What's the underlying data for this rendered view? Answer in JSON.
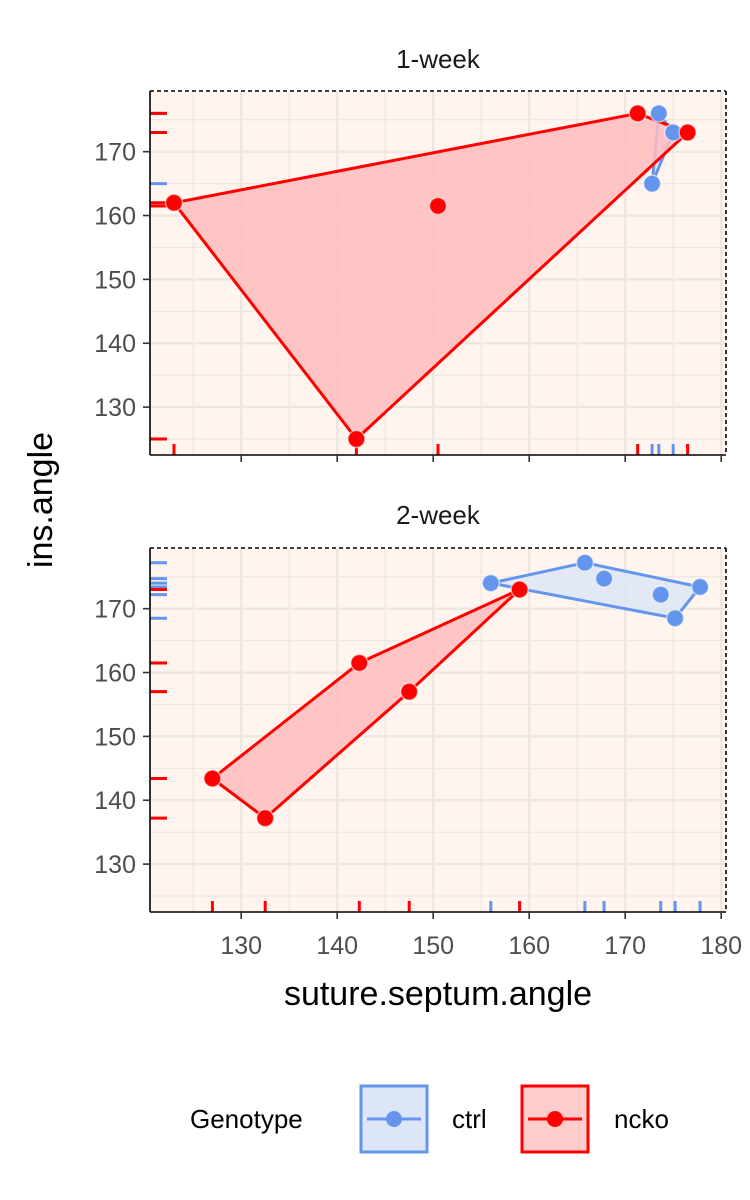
{
  "chart_data": {
    "type": "scatter",
    "xlabel": "suture.septum.angle",
    "ylabel": "ins.angle",
    "xlim": [
      120.5,
      180.5
    ],
    "ylim": [
      122.5,
      179.5
    ],
    "x_ticks": [
      130,
      140,
      150,
      160,
      170,
      180
    ],
    "y_ticks": [
      130,
      140,
      150,
      160,
      170
    ],
    "grid": true,
    "panel_background": "#fff4ee",
    "legend": {
      "title": "Genotype",
      "placement": "bottom",
      "entries": [
        "ctrl",
        "ncko"
      ]
    },
    "series_colors": {
      "ctrl": "#6495ed",
      "ncko": "#ff0000"
    },
    "hull_fill": {
      "ctrl": "#dde6f6",
      "ncko": "#ffbcbc"
    },
    "facets": [
      {
        "title": "1-week",
        "series": [
          {
            "name": "ctrl",
            "points": [
              [
                173.5,
                176.0
              ],
              [
                175.0,
                173.0
              ],
              [
                172.8,
                165.0
              ]
            ],
            "hull": [
              [
                173.5,
                176.0
              ],
              [
                175.0,
                173.0
              ],
              [
                172.8,
                165.0
              ]
            ]
          },
          {
            "name": "ncko",
            "points": [
              [
                171.3,
                176.0
              ],
              [
                176.5,
                173.0
              ],
              [
                123.0,
                162.0
              ],
              [
                150.5,
                161.5
              ],
              [
                142.0,
                125.0
              ]
            ],
            "hull": [
              [
                171.3,
                176.0
              ],
              [
                176.5,
                173.0
              ],
              [
                142.0,
                125.0
              ],
              [
                123.0,
                162.0
              ]
            ]
          }
        ]
      },
      {
        "title": "2-week",
        "series": [
          {
            "name": "ctrl",
            "points": [
              [
                156.0,
                174.0
              ],
              [
                165.8,
                177.2
              ],
              [
                167.8,
                174.7
              ],
              [
                173.7,
                172.2
              ],
              [
                177.8,
                173.4
              ],
              [
                175.2,
                168.5
              ]
            ],
            "hull": [
              [
                156.0,
                174.0
              ],
              [
                165.8,
                177.2
              ],
              [
                177.8,
                173.4
              ],
              [
                175.2,
                168.5
              ]
            ]
          },
          {
            "name": "ncko",
            "points": [
              [
                159.0,
                173.0
              ],
              [
                142.3,
                161.5
              ],
              [
                147.5,
                157.0
              ],
              [
                127.0,
                143.4
              ],
              [
                132.5,
                137.2
              ]
            ],
            "hull": [
              [
                159.0,
                173.0
              ],
              [
                147.5,
                157.0
              ],
              [
                132.5,
                137.2
              ],
              [
                127.0,
                143.4
              ],
              [
                142.3,
                161.5
              ]
            ]
          }
        ]
      }
    ]
  }
}
